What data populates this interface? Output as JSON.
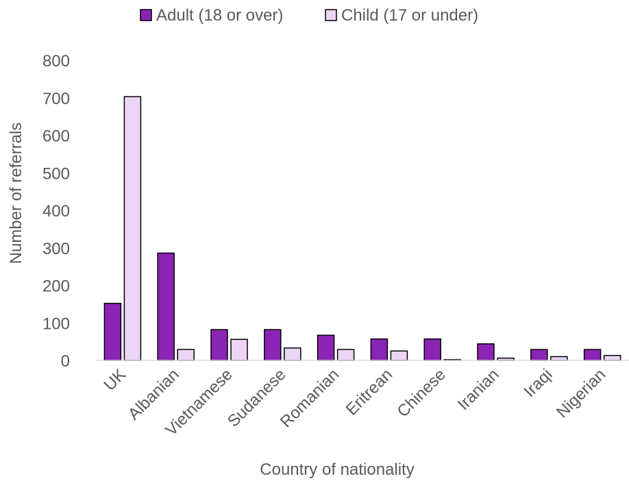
{
  "chart_data": {
    "type": "bar",
    "title": "",
    "xlabel": "Country of nationality",
    "ylabel": "Number of referrals",
    "ylim": [
      0,
      800
    ],
    "yticks": [
      0,
      100,
      200,
      300,
      400,
      500,
      600,
      700,
      800
    ],
    "grid": false,
    "legend_position": "top",
    "categories": [
      "UK",
      "Albanian",
      "Vietnamese",
      "Sudanese",
      "Romanian",
      "Eritrean",
      "Chinese",
      "Iranian",
      "Iraqi",
      "Nigerian"
    ],
    "series": [
      {
        "name": "Adult (18 or over)",
        "color": "#8b24b4",
        "values": [
          152,
          286,
          82,
          82,
          67,
          57,
          57,
          44,
          29,
          29
        ]
      },
      {
        "name": "Child (17 or under)",
        "color": "#ecd5f5",
        "values": [
          703,
          29,
          56,
          33,
          29,
          25,
          2,
          6,
          10,
          13
        ]
      }
    ]
  }
}
